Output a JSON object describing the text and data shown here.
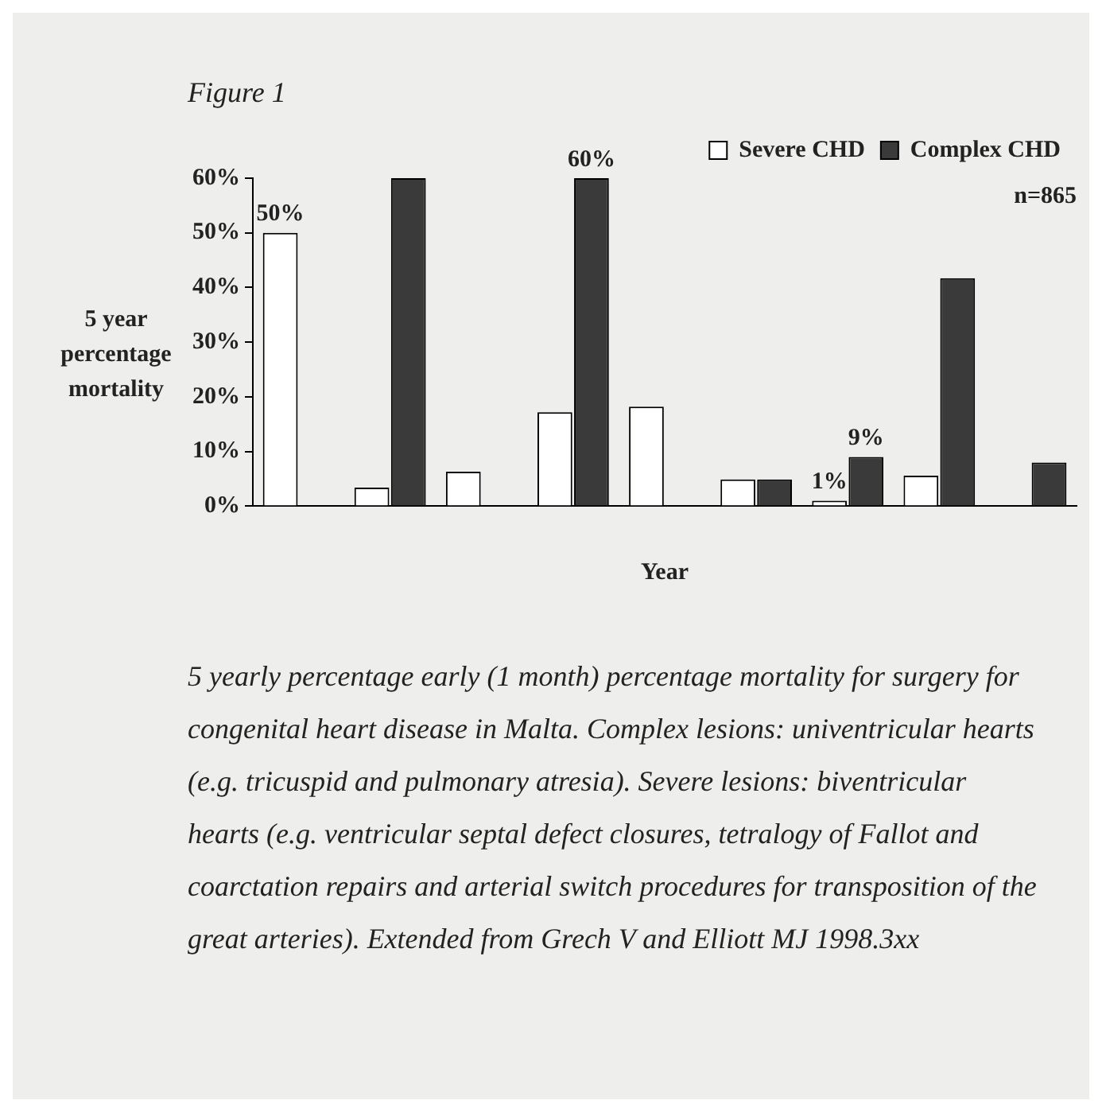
{
  "chart_data": {
    "type": "bar",
    "title": "Figure 1",
    "ylabel": "5 year percentage mortality",
    "xlabel": "Year",
    "annotations": [
      "n=865",
      "5 yearly percentage early (1 month) percentage mortality for surgery for congenital heart disease in Malta. Complex lesions: univentricular hearts (e.g. tricuspid and pulmonary atresia). Severe lesions: biventricular hearts (e.g. ventricular septal defect closures, tetralogy of Fallot and coarctation repairs and arterial switch procedures for transposition of the great arteries). Extended from Grech V and Elliott MJ 1998.3xx"
    ],
    "categories": [
      null,
      null,
      null,
      null,
      null,
      null,
      null,
      null,
      null
    ],
    "series": [
      {
        "name": "Severe CHD",
        "color": "#ffffff",
        "values": [
          50,
          3.4,
          6.3,
          17.2,
          18.2,
          4.9,
          1,
          5.6,
          null
        ],
        "value_labels": [
          "50%",
          null,
          null,
          null,
          null,
          null,
          "1%",
          null,
          null
        ]
      },
      {
        "name": "Complex CHD",
        "color": "#3a3a3a",
        "values": [
          null,
          60,
          null,
          60,
          null,
          4.9,
          9,
          41.7,
          8
        ],
        "value_labels": [
          null,
          null,
          null,
          "60%",
          null,
          null,
          "9%",
          null,
          null
        ]
      }
    ],
    "ylim": [
      0,
      60
    ],
    "yticks": [
      {
        "value": 0,
        "label": "0%"
      },
      {
        "value": 10,
        "label": "10%"
      },
      {
        "value": 20,
        "label": "20%"
      },
      {
        "value": 30,
        "label": "30%"
      },
      {
        "value": 40,
        "label": "40%"
      },
      {
        "value": 50,
        "label": "50%"
      },
      {
        "value": 60,
        "label": "60%"
      }
    ],
    "grid": false,
    "legend": "top right"
  }
}
